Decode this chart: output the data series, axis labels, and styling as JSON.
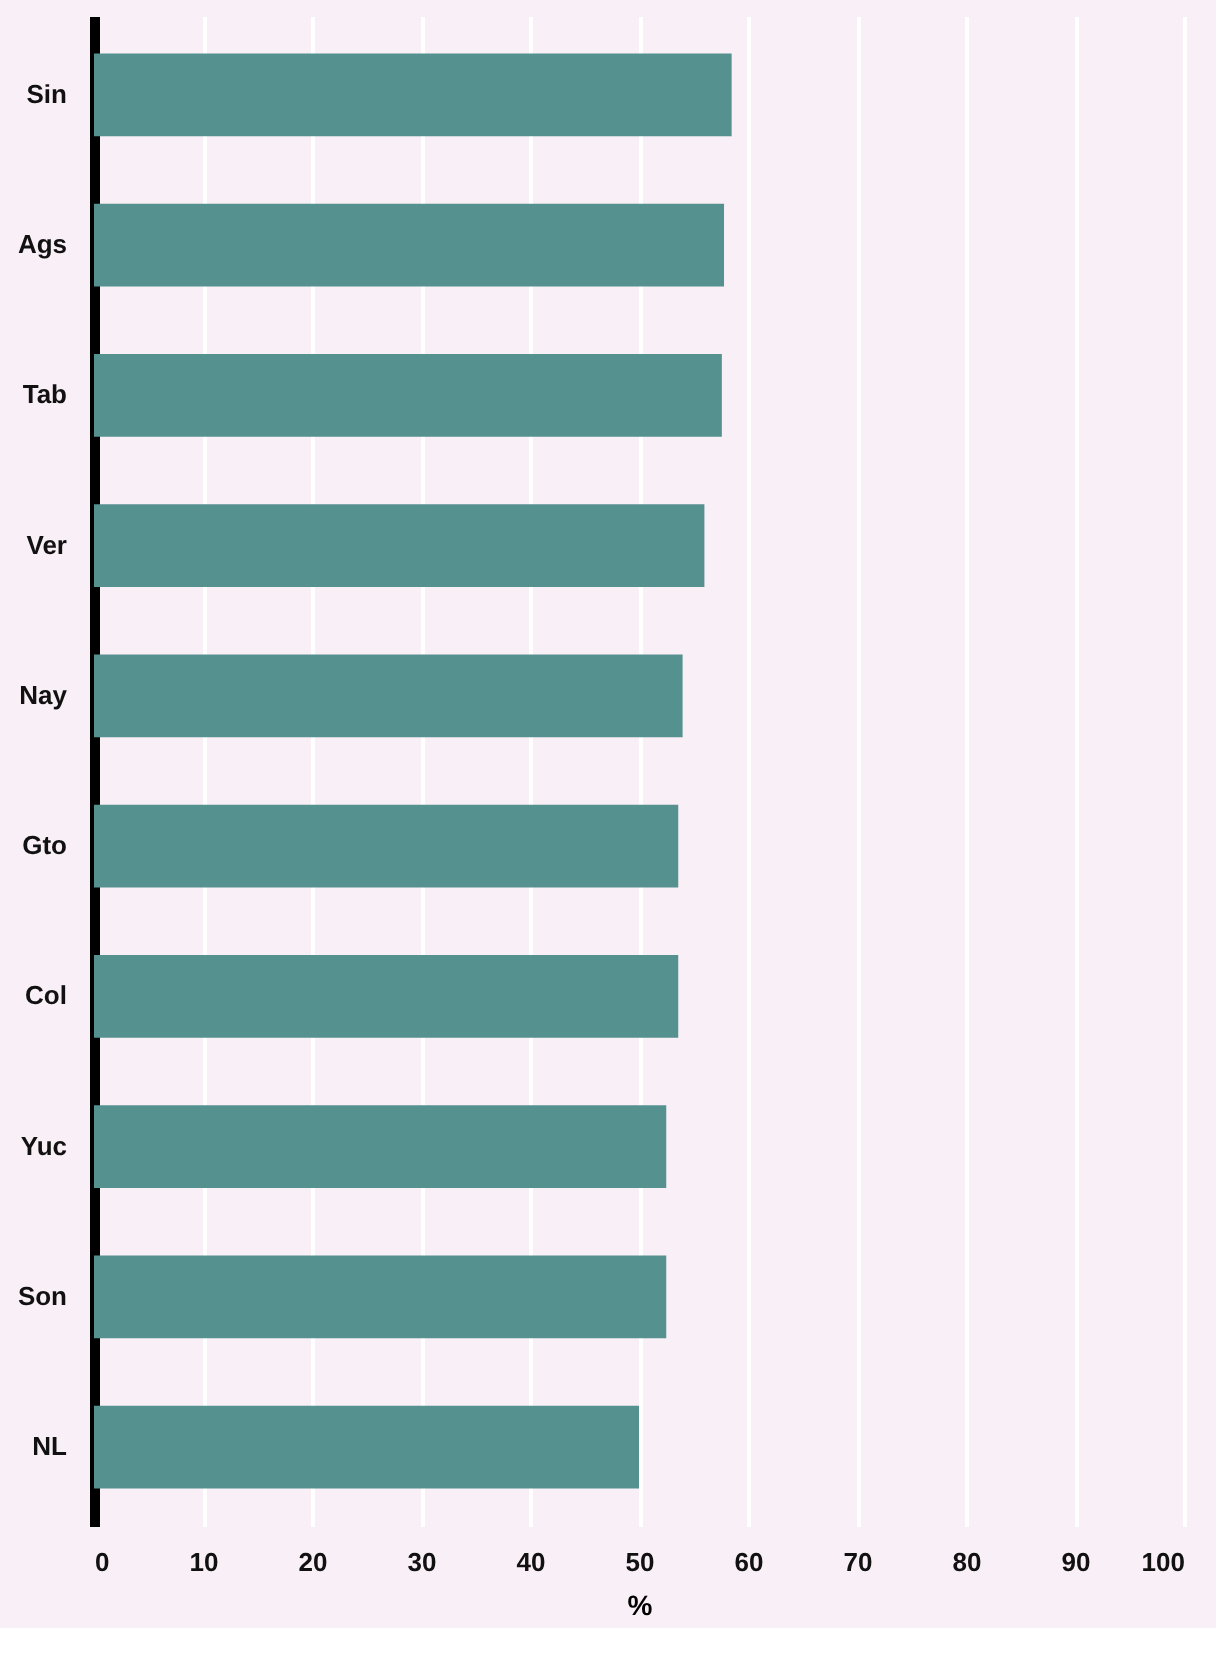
{
  "chart_data": {
    "type": "bar",
    "orientation": "horizontal",
    "xlabel": "%",
    "categories": [
      "Sin",
      "Ags",
      "Tab",
      "Ver",
      "Nay",
      "Gto",
      "Col",
      "Yuc",
      "Son",
      "NL"
    ],
    "values": [
      58.5,
      57.8,
      57.6,
      56.0,
      54.0,
      53.6,
      53.6,
      52.5,
      52.5,
      50.0
    ],
    "color": "#55918f",
    "xlim": [
      0,
      100
    ],
    "xticks": [
      0,
      10,
      20,
      30,
      40,
      50,
      60,
      70,
      80,
      90,
      100
    ],
    "grid": "x"
  }
}
